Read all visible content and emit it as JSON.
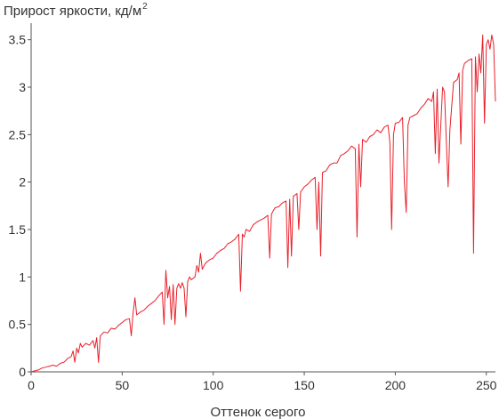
{
  "chart_data": {
    "type": "line",
    "title": "Прирост яркости, кд/м",
    "title_superscript": "2",
    "xlabel": "Оттенок серого",
    "ylabel": "",
    "xlim": [
      0,
      255
    ],
    "ylim": [
      0,
      3.6
    ],
    "x_ticks": [
      0,
      50,
      100,
      150,
      200,
      250
    ],
    "y_ticks": [
      0,
      0.5,
      1,
      1.5,
      2,
      2.5,
      3,
      3.5
    ],
    "y_tick_labels": [
      "0",
      "0.5",
      "1",
      "1.5",
      "2",
      "2.5",
      "3",
      "3.5"
    ],
    "grid": false,
    "colors": {
      "line": "#e8202a",
      "axis": "#555555"
    },
    "series": [
      {
        "x": [
          0,
          2,
          4,
          6,
          8,
          10,
          12,
          14,
          16,
          18,
          20,
          22,
          23,
          24,
          25,
          26,
          27,
          28,
          30,
          32,
          34,
          35,
          36,
          37,
          38,
          40,
          42,
          44,
          46,
          48,
          50,
          52,
          54,
          55,
          56,
          57,
          58,
          60,
          62,
          64,
          66,
          68,
          70,
          72,
          73,
          74,
          75,
          76,
          77,
          78,
          79,
          80,
          81,
          82,
          83,
          84,
          85,
          86,
          87,
          88,
          90,
          91,
          92,
          93,
          94,
          95,
          96,
          98,
          100,
          102,
          104,
          106,
          108,
          110,
          112,
          114,
          115,
          116,
          117,
          118,
          120,
          122,
          124,
          126,
          128,
          130,
          131,
          132,
          133,
          134,
          136,
          138,
          140,
          141,
          142,
          143,
          144,
          146,
          147,
          148,
          149,
          150,
          152,
          154,
          156,
          157,
          158,
          159,
          160,
          162,
          164,
          166,
          168,
          170,
          172,
          174,
          176,
          178,
          179,
          180,
          181,
          182,
          184,
          186,
          188,
          190,
          192,
          194,
          196,
          197,
          198,
          199,
          200,
          202,
          204,
          205,
          206,
          207,
          208,
          210,
          212,
          214,
          216,
          218,
          220,
          221,
          222,
          223,
          224,
          226,
          227,
          228,
          229,
          230,
          232,
          234,
          235,
          236,
          237,
          238,
          240,
          242,
          243,
          244,
          245,
          246,
          247,
          248,
          249,
          250,
          251,
          252,
          253,
          254,
          255
        ],
        "y": [
          0,
          0.01,
          0.02,
          0.04,
          0.05,
          0.06,
          0.07,
          0.06,
          0.09,
          0.1,
          0.14,
          0.16,
          0.22,
          0.1,
          0.25,
          0.2,
          0.3,
          0.26,
          0.3,
          0.28,
          0.33,
          0.25,
          0.36,
          0.1,
          0.38,
          0.42,
          0.41,
          0.46,
          0.45,
          0.49,
          0.52,
          0.55,
          0.56,
          0.38,
          0.62,
          0.78,
          0.6,
          0.63,
          0.65,
          0.69,
          0.72,
          0.75,
          0.8,
          0.84,
          0.5,
          1.07,
          0.78,
          0.9,
          0.55,
          0.92,
          0.5,
          0.88,
          0.93,
          0.88,
          0.94,
          0.88,
          0.58,
          0.95,
          1.0,
          0.97,
          1.0,
          1.12,
          1.05,
          1.25,
          1.08,
          1.12,
          1.15,
          1.18,
          1.2,
          1.25,
          1.28,
          1.3,
          1.35,
          1.37,
          1.4,
          1.45,
          0.85,
          1.45,
          1.42,
          1.5,
          1.48,
          1.55,
          1.58,
          1.6,
          1.62,
          1.65,
          1.2,
          1.66,
          1.7,
          1.73,
          1.74,
          1.78,
          1.8,
          1.1,
          1.82,
          1.22,
          1.85,
          1.88,
          1.5,
          1.9,
          1.92,
          1.95,
          1.98,
          2.02,
          2.05,
          1.5,
          2.0,
          1.22,
          2.1,
          2.12,
          2.18,
          2.2,
          2.2,
          2.28,
          2.3,
          2.33,
          2.38,
          2.35,
          1.42,
          2.4,
          1.95,
          2.45,
          2.42,
          2.48,
          2.5,
          2.55,
          2.52,
          2.58,
          2.6,
          2.42,
          1.5,
          2.5,
          2.62,
          2.63,
          2.68,
          2.0,
          1.68,
          2.6,
          2.68,
          2.7,
          2.72,
          2.78,
          2.82,
          2.88,
          2.85,
          2.95,
          2.3,
          2.98,
          2.2,
          3.0,
          2.95,
          2.45,
          1.95,
          2.55,
          3.05,
          3.08,
          3.15,
          2.4,
          3.18,
          3.25,
          3.28,
          3.3,
          1.25,
          3.32,
          2.95,
          3.35,
          3.15,
          3.55,
          2.62,
          3.45,
          3.5,
          3.4,
          3.55,
          3.45,
          2.85
        ]
      }
    ]
  }
}
